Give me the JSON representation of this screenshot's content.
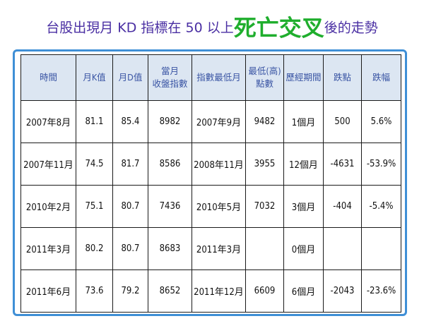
{
  "title": {
    "prefix": "台股出現月 KD 指標在 50 以上",
    "highlight": "死亡交叉",
    "suffix": "後的走勢"
  },
  "colors": {
    "title_text": "#4a2fa3",
    "highlight": "#1fae2d",
    "frame": "#3f8fd6",
    "header_bg": "#dce6f2",
    "header_text": "#3a55a4",
    "up_red": "#e0141d",
    "down_green": "#2aa43a"
  },
  "table": {
    "headers": [
      [
        "時間"
      ],
      [
        "月K值"
      ],
      [
        "月D值"
      ],
      [
        "當月",
        "收盤指數"
      ],
      [
        "指數最低月"
      ],
      [
        "最低(高)",
        "點數"
      ],
      [
        "歷經期間"
      ],
      [
        "跌點"
      ],
      [
        "跌幅"
      ]
    ],
    "rows": [
      {
        "time": "2007年8月",
        "k": "81.1",
        "d": "85.4",
        "close": "8982",
        "low_month": "2007年9月",
        "low_pts": "9482",
        "period": "1個月",
        "change": "500",
        "pct": "5.6%",
        "dir": "up"
      },
      {
        "time": "2007年11月",
        "k": "74.5",
        "d": "81.7",
        "close": "8586",
        "low_month": "2008年11月",
        "low_pts": "3955",
        "period": "12個月",
        "change": "-4631",
        "pct": "-53.9%",
        "dir": "down"
      },
      {
        "time": "2010年2月",
        "k": "75.1",
        "d": "80.7",
        "close": "7436",
        "low_month": "2010年5月",
        "low_pts": "7032",
        "period": "3個月",
        "change": "-404",
        "pct": "-5.4%",
        "dir": "down"
      },
      {
        "time": "2011年3月",
        "k": "80.2",
        "d": "80.7",
        "close": "8683",
        "low_month": "2011年3月",
        "low_pts": "",
        "period": "0個月",
        "change": "",
        "pct": "",
        "dir": "none"
      },
      {
        "time": "2011年6月",
        "k": "73.6",
        "d": "79.2",
        "close": "8652",
        "low_month": "2011年12月",
        "low_pts": "6609",
        "period": "6個月",
        "change": "-2043",
        "pct": "-23.6%",
        "dir": "down"
      }
    ]
  }
}
